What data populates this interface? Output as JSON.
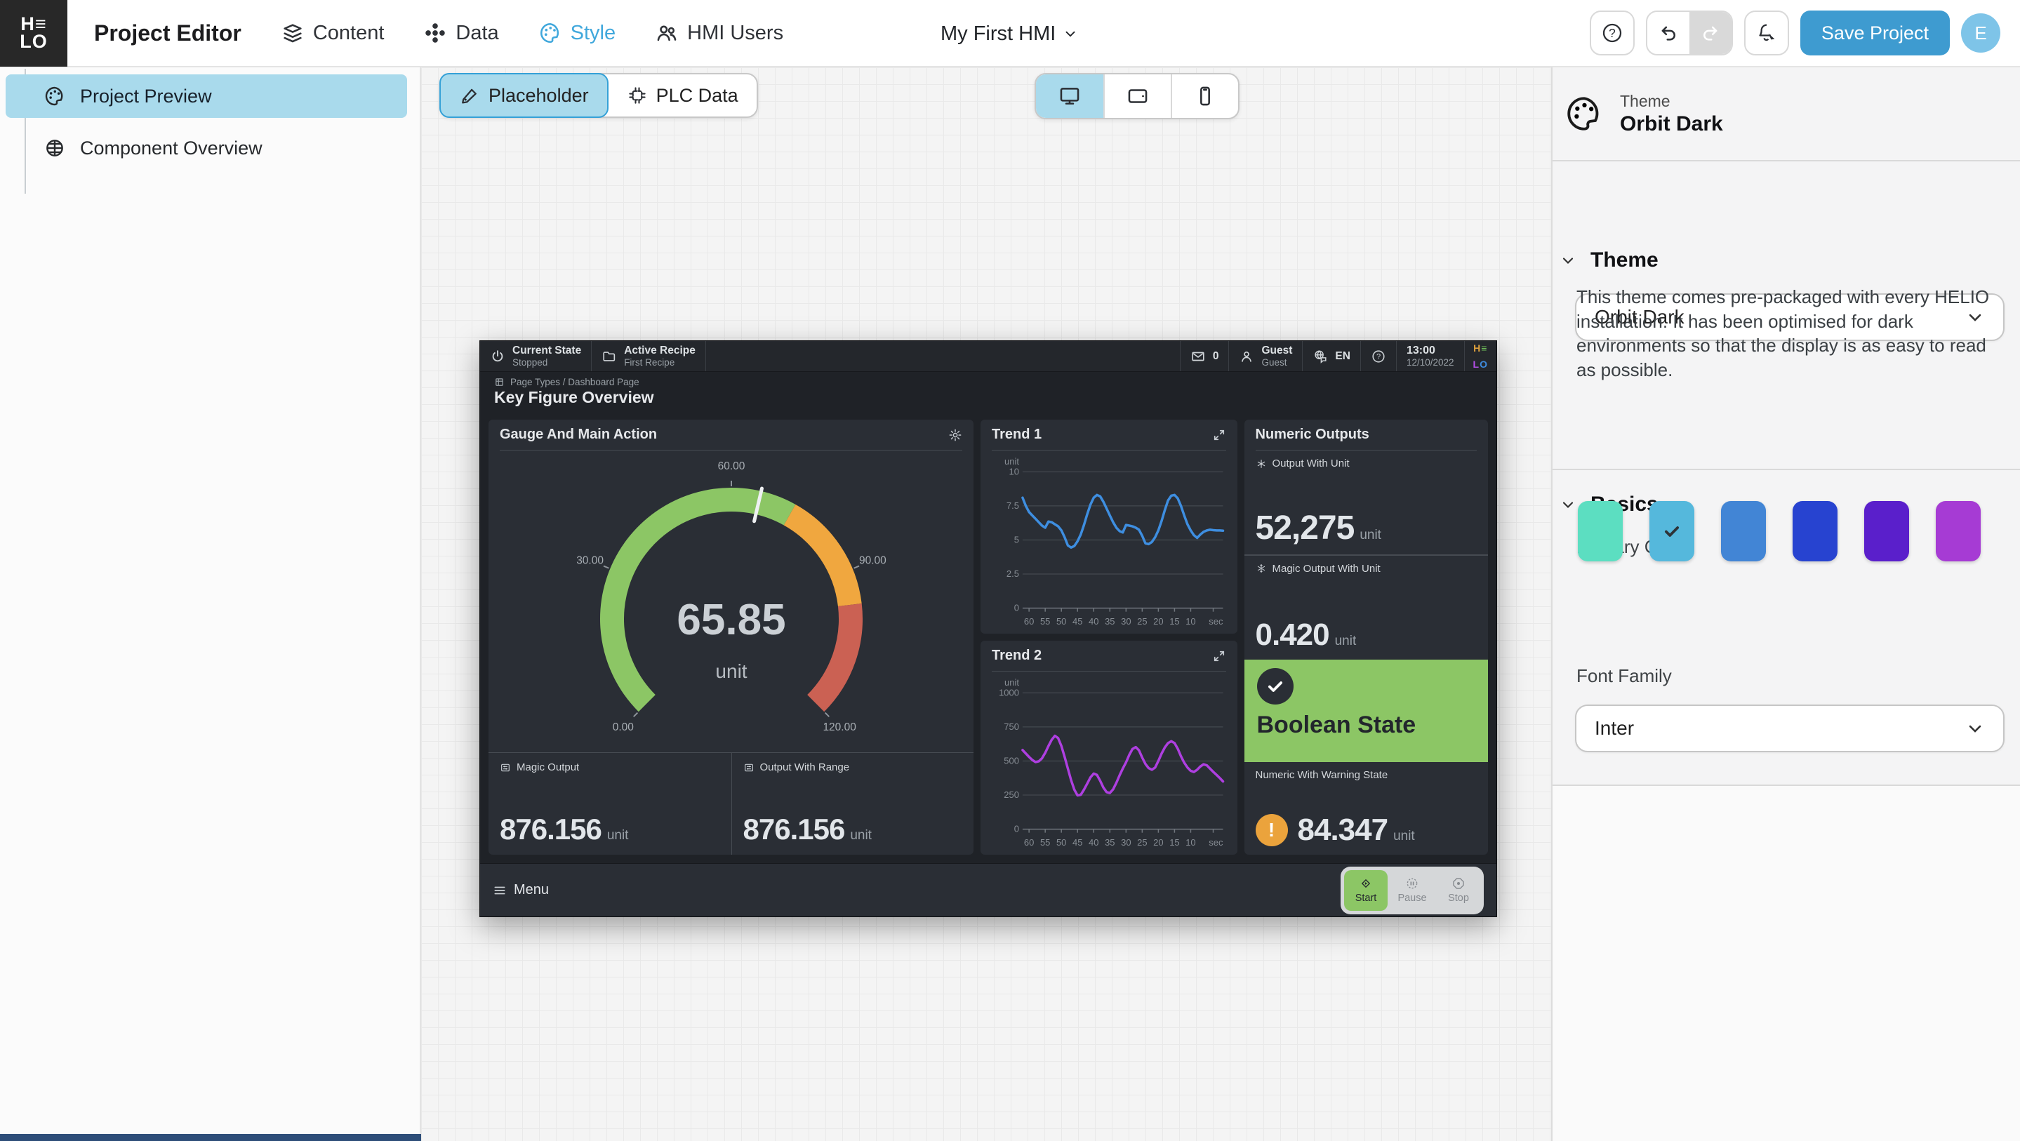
{
  "navbar": {
    "logo_line1": "H≡",
    "logo_line2": "LO",
    "title": "Project Editor",
    "items": [
      {
        "label": "Content"
      },
      {
        "label": "Data"
      },
      {
        "label": "Style"
      },
      {
        "label": "HMI Users"
      }
    ],
    "active_item": "Style",
    "project_selector": "My First HMI",
    "save_button": "Save Project",
    "avatar_initial": "E"
  },
  "sidebar": {
    "items": [
      {
        "label": "Project Preview",
        "active": true
      },
      {
        "label": "Component Overview",
        "active": false
      }
    ]
  },
  "canvas": {
    "tabs": [
      {
        "label": "Placeholder",
        "active": true
      },
      {
        "label": "PLC Data",
        "active": false
      }
    ],
    "device_toggles": [
      "desktop",
      "tablet",
      "phone"
    ],
    "active_device": "desktop"
  },
  "hmi": {
    "statusbar": {
      "state_label": "Current State",
      "state_value": "Stopped",
      "recipe_label": "Active Recipe",
      "recipe_value": "First Recipe",
      "message_count": "0",
      "user_name": "Guest",
      "user_role": "Guest",
      "language": "EN",
      "time": "13:00",
      "date": "12/10/2022",
      "logo": {
        "h": "H",
        "bars": "≡",
        "l": "L",
        "o": "O"
      }
    },
    "page": {
      "breadcrumb": "Page Types / Dashboard Page",
      "title": "Key Figure Overview"
    },
    "gauge_panel": {
      "title": "Gauge And Main Action",
      "outputs": [
        {
          "label": "Magic Output",
          "value": "876.156",
          "unit": "unit"
        },
        {
          "label": "Output With Range",
          "value": "876.156",
          "unit": "unit"
        }
      ]
    },
    "trend1_title": "Trend 1",
    "trend2_title": "Trend 2",
    "numeric_panel": {
      "title": "Numeric Outputs",
      "output_with_unit": {
        "label": "Output With Unit",
        "value": "52,275",
        "unit": "unit"
      },
      "magic_output": {
        "label": "Magic Output With Unit",
        "value": "0.420",
        "unit": "unit"
      },
      "boolean_state": {
        "label": "Boolean State"
      },
      "warning": {
        "label": "Numeric With Warning State",
        "value": "84.347",
        "unit": "unit",
        "icon_text": "!"
      }
    },
    "menubar": {
      "menu_label": "Menu",
      "controls": [
        {
          "label": "Start",
          "active": true
        },
        {
          "label": "Pause",
          "active": false
        },
        {
          "label": "Stop",
          "active": false
        }
      ]
    }
  },
  "right_panel": {
    "header": {
      "label": "Theme",
      "value": "Orbit Dark"
    },
    "theme_section": {
      "heading": "Theme",
      "dropdown_value": "Orbit Dark",
      "description": "This theme comes pre-packaged with every HELIO installation. It has been optimised for dark environments so that the display is as easy to read as possible."
    },
    "basics_section": {
      "heading": "Basics",
      "primary_color_label": "Primary Color",
      "colors": [
        "#5CDEC1",
        "#55B8DC",
        "#4285D5",
        "#2743D0",
        "#5A1FCB",
        "#A63BD4"
      ],
      "selected_color_index": 1,
      "font_family_label": "Font Family",
      "font_family_value": "Inter"
    }
  },
  "icons": {
    "nav": [
      "layers-icon",
      "dots-grid-icon",
      "palette-icon",
      "users-icon"
    ],
    "toolbar": [
      "help-icon",
      "undo-icon",
      "redo-icon",
      "bell-cursor-icon"
    ],
    "statusbar": [
      "power-icon",
      "folder-icon",
      "mail-icon",
      "user-icon",
      "language-globe-icon",
      "question-icon"
    ],
    "panels": [
      "gear-icon",
      "expand-icon",
      "fan-icon",
      "snowflake-icon",
      "check-icon",
      "warning-icon",
      "slider-icon"
    ],
    "menubar": [
      "hamburger-icon",
      "start-diamond-icon",
      "pause-icon",
      "stop-octagon-icon"
    ],
    "devices": [
      "monitor-icon",
      "tablet-icon",
      "phone-icon"
    ]
  },
  "chart_data": [
    {
      "id": "gauge",
      "type": "gauge",
      "title": "Gauge And Main Action",
      "value": 65.85,
      "value_label": "65.85",
      "unit": "unit",
      "min": 0,
      "max": 120,
      "start_angle_deg": 225,
      "sweep_deg": 270,
      "tick_values": [
        0,
        30,
        60,
        90,
        120
      ],
      "tick_labels": [
        "0.00",
        "30.00",
        "60.00",
        "90.00",
        "120.00"
      ],
      "zones": [
        {
          "from": 0,
          "to": 73,
          "color": "#8CC665"
        },
        {
          "from": 73,
          "to": 97,
          "color": "#F0A73F"
        },
        {
          "from": 97,
          "to": 120,
          "color": "#CB6153"
        }
      ]
    },
    {
      "id": "trend1",
      "type": "line",
      "title": "Trend 1",
      "color": "#3E8EE0",
      "y_unit": "unit",
      "y_ticks": [
        10,
        7.5,
        5,
        2.5,
        0
      ],
      "y_range": [
        0,
        10
      ],
      "x_ticks": [
        60,
        55,
        50,
        45,
        40,
        35,
        30,
        25,
        20,
        15,
        10
      ],
      "x_axis_unit": "sec",
      "x_max": 62,
      "grid": true,
      "points": [
        [
          62,
          8.1
        ],
        [
          61,
          7.5
        ],
        [
          60,
          7.05
        ],
        [
          59,
          6.8
        ],
        [
          58,
          6.55
        ],
        [
          57,
          6.3
        ],
        [
          56,
          6.05
        ],
        [
          55,
          5.9
        ],
        [
          54,
          6.35
        ],
        [
          53,
          6.3
        ],
        [
          52,
          6.15
        ],
        [
          51,
          6.0
        ],
        [
          50,
          5.7
        ],
        [
          49,
          5.2
        ],
        [
          48,
          4.6
        ],
        [
          47,
          4.45
        ],
        [
          46,
          4.55
        ],
        [
          45,
          4.9
        ],
        [
          44,
          5.4
        ],
        [
          43,
          6.1
        ],
        [
          42,
          6.9
        ],
        [
          41,
          7.6
        ],
        [
          40,
          8.1
        ],
        [
          39,
          8.3
        ],
        [
          38,
          8.2
        ],
        [
          37,
          7.8
        ],
        [
          36,
          7.3
        ],
        [
          35,
          6.8
        ],
        [
          34,
          6.3
        ],
        [
          33,
          5.9
        ],
        [
          32,
          5.65
        ],
        [
          31,
          5.55
        ],
        [
          30,
          6.1
        ],
        [
          29,
          6.05
        ],
        [
          28,
          6.0
        ],
        [
          27,
          5.9
        ],
        [
          26,
          5.75
        ],
        [
          25,
          5.3
        ],
        [
          24,
          4.75
        ],
        [
          23,
          4.7
        ],
        [
          22,
          4.85
        ],
        [
          21,
          5.2
        ],
        [
          20,
          5.7
        ],
        [
          19,
          6.4
        ],
        [
          18,
          7.2
        ],
        [
          17,
          7.9
        ],
        [
          16,
          8.25
        ],
        [
          15,
          8.3
        ],
        [
          14,
          8.05
        ],
        [
          13,
          7.5
        ],
        [
          12,
          6.8
        ],
        [
          11,
          6.15
        ],
        [
          10,
          5.7
        ],
        [
          9,
          5.35
        ],
        [
          8,
          5.15
        ],
        [
          7,
          5.4
        ],
        [
          6,
          5.6
        ],
        [
          5,
          5.7
        ],
        [
          4,
          5.75
        ],
        [
          3,
          5.72
        ],
        [
          2,
          5.7
        ],
        [
          1,
          5.7
        ],
        [
          0,
          5.68
        ]
      ]
    },
    {
      "id": "trend2",
      "type": "line",
      "title": "Trend 2",
      "color": "#AE3FE0",
      "y_unit": "unit",
      "y_ticks": [
        1000,
        750,
        500,
        250,
        0
      ],
      "y_range": [
        0,
        1000
      ],
      "x_ticks": [
        60,
        55,
        50,
        45,
        40,
        35,
        30,
        25,
        20,
        15,
        10
      ],
      "x_axis_unit": "sec",
      "x_max": 62,
      "grid": true,
      "points": [
        [
          62,
          580
        ],
        [
          61,
          555
        ],
        [
          60,
          530
        ],
        [
          59,
          508
        ],
        [
          58,
          492
        ],
        [
          57,
          498
        ],
        [
          56,
          520
        ],
        [
          55,
          560
        ],
        [
          54,
          610
        ],
        [
          53,
          655
        ],
        [
          52,
          685
        ],
        [
          51,
          668
        ],
        [
          50,
          610
        ],
        [
          49,
          530
        ],
        [
          48,
          445
        ],
        [
          47,
          360
        ],
        [
          46,
          290
        ],
        [
          45,
          248
        ],
        [
          44,
          252
        ],
        [
          43,
          290
        ],
        [
          42,
          335
        ],
        [
          41,
          380
        ],
        [
          40,
          408
        ],
        [
          39,
          398
        ],
        [
          38,
          355
        ],
        [
          37,
          305
        ],
        [
          36,
          272
        ],
        [
          35,
          265
        ],
        [
          34,
          292
        ],
        [
          33,
          340
        ],
        [
          32,
          395
        ],
        [
          31,
          445
        ],
        [
          30,
          490
        ],
        [
          29,
          545
        ],
        [
          28,
          588
        ],
        [
          27,
          602
        ],
        [
          26,
          578
        ],
        [
          25,
          525
        ],
        [
          24,
          478
        ],
        [
          23,
          448
        ],
        [
          22,
          436
        ],
        [
          21,
          452
        ],
        [
          20,
          500
        ],
        [
          19,
          555
        ],
        [
          18,
          600
        ],
        [
          17,
          632
        ],
        [
          16,
          645
        ],
        [
          15,
          632
        ],
        [
          14,
          590
        ],
        [
          13,
          535
        ],
        [
          12,
          488
        ],
        [
          11,
          452
        ],
        [
          10,
          428
        ],
        [
          9,
          420
        ],
        [
          8,
          436
        ],
        [
          7,
          460
        ],
        [
          6,
          476
        ],
        [
          5,
          468
        ],
        [
          4,
          444
        ],
        [
          3,
          420
        ],
        [
          2,
          398
        ],
        [
          1,
          375
        ],
        [
          0,
          350
        ]
      ]
    }
  ]
}
